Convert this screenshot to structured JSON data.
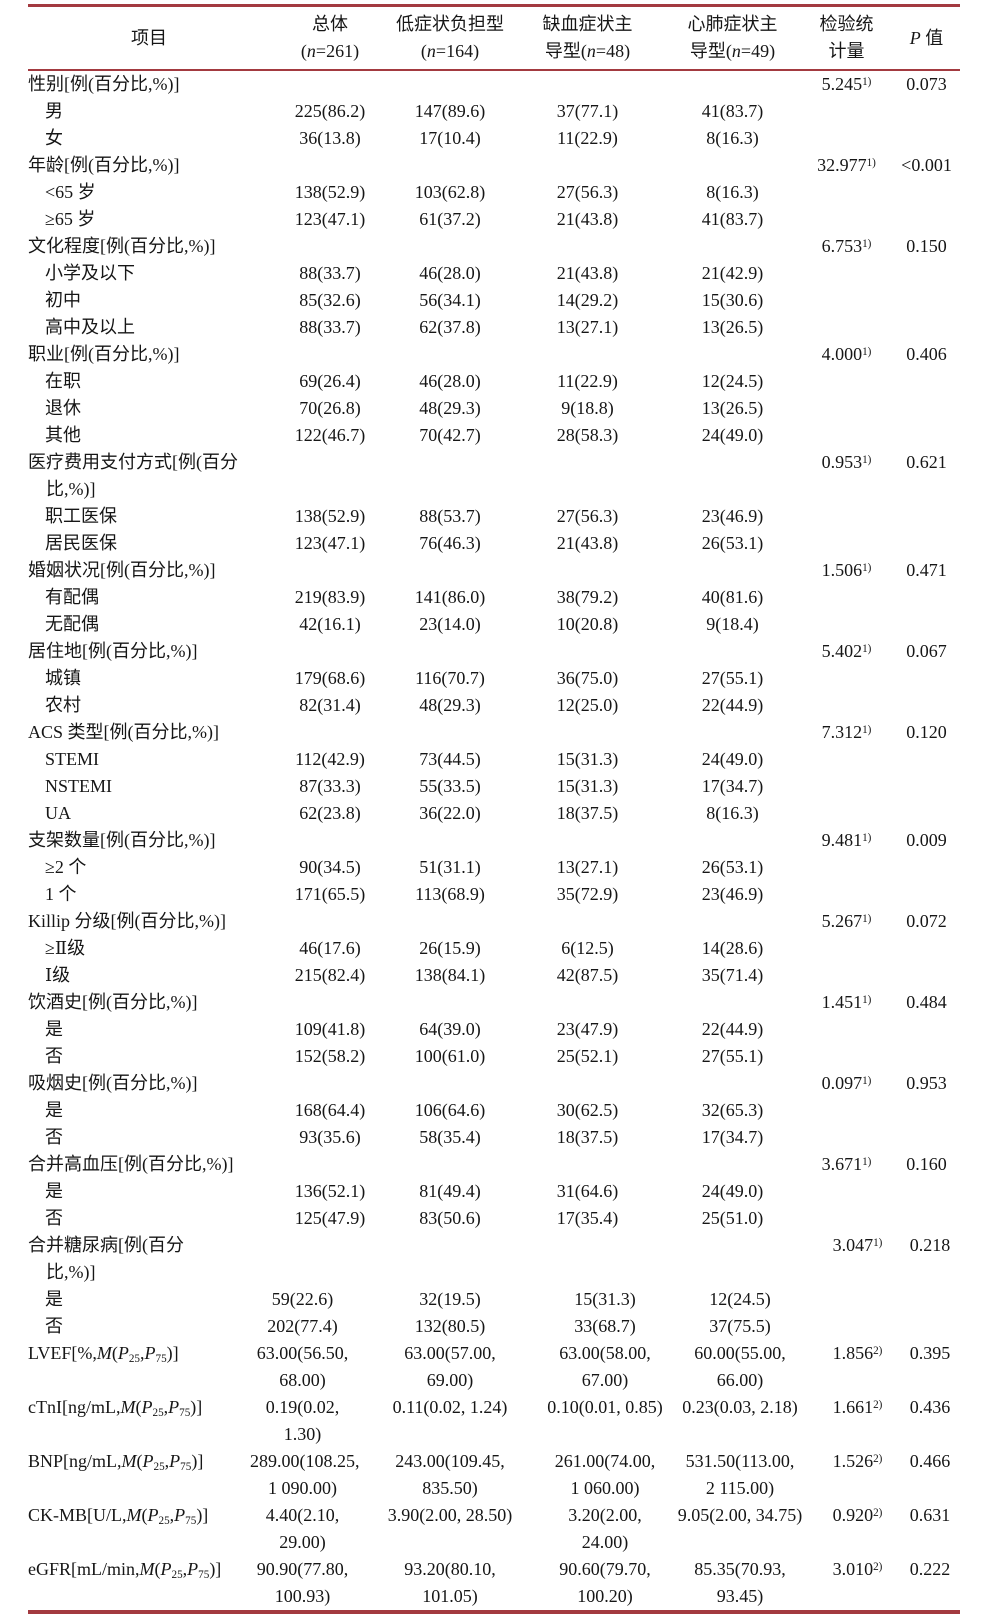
{
  "colors": {
    "rule": "#a33a40"
  },
  "table": {
    "header": {
      "cols": [
        {
          "l1": "项目",
          "l2": ""
        },
        {
          "l1": "总体",
          "l2": "(*n*=261)"
        },
        {
          "l1": "低症状负担型",
          "l2": "(*n*=164)"
        },
        {
          "l1": "缺血症状主",
          "l2": "导型(*n*=48)"
        },
        {
          "l1": "心肺症状主",
          "l2": "导型(*n*=49)"
        },
        {
          "l1": "检验统",
          "l2": "计量"
        },
        {
          "l1": "*P* 值",
          "l2": ""
        }
      ]
    },
    "sections": [
      {
        "rows": [
          {
            "type": "cat",
            "label": "性别[例(百分比,%)]",
            "v": [
              "",
              "",
              "",
              ""
            ],
            "stat": "5.245^1)^",
            "p": "0.073"
          },
          {
            "type": "sub",
            "label": "男",
            "v": [
              "225(86.2)",
              "147(89.6)",
              "37(77.1)",
              "41(83.7)"
            ],
            "stat": "",
            "p": ""
          },
          {
            "type": "sub",
            "label": "女",
            "v": [
              "36(13.8)",
              "17(10.4)",
              "11(22.9)",
              "8(16.3)"
            ],
            "stat": "",
            "p": ""
          },
          {
            "type": "cat",
            "label": "年龄[例(百分比,%)]",
            "v": [
              "",
              "",
              "",
              ""
            ],
            "stat": "32.977^1)^",
            "p": "<0.001"
          },
          {
            "type": "sub",
            "label": "<65 岁",
            "v": [
              "138(52.9)",
              "103(62.8)",
              "27(56.3)",
              "8(16.3)"
            ],
            "stat": "",
            "p": ""
          },
          {
            "type": "sub",
            "label": "≥65 岁",
            "v": [
              "123(47.1)",
              "61(37.2)",
              "21(43.8)",
              "41(83.7)"
            ],
            "stat": "",
            "p": ""
          },
          {
            "type": "cat",
            "label": "文化程度[例(百分比,%)]",
            "v": [
              "",
              "",
              "",
              ""
            ],
            "stat": "6.753^1)^",
            "p": "0.150"
          },
          {
            "type": "sub",
            "label": "小学及以下",
            "v": [
              "88(33.7)",
              "46(28.0)",
              "21(43.8)",
              "21(42.9)"
            ],
            "stat": "",
            "p": ""
          },
          {
            "type": "sub",
            "label": "初中",
            "v": [
              "85(32.6)",
              "56(34.1)",
              "14(29.2)",
              "15(30.6)"
            ],
            "stat": "",
            "p": ""
          },
          {
            "type": "sub",
            "label": "高中及以上",
            "v": [
              "88(33.7)",
              "62(37.8)",
              "13(27.1)",
              "13(26.5)"
            ],
            "stat": "",
            "p": ""
          },
          {
            "type": "cat",
            "label": "职业[例(百分比,%)]",
            "v": [
              "",
              "",
              "",
              ""
            ],
            "stat": "4.000^1)^",
            "p": "0.406"
          },
          {
            "type": "sub",
            "label": "在职",
            "v": [
              "69(26.4)",
              "46(28.0)",
              "11(22.9)",
              "12(24.5)"
            ],
            "stat": "",
            "p": ""
          },
          {
            "type": "sub",
            "label": "退休",
            "v": [
              "70(26.8)",
              "48(29.3)",
              "9(18.8)",
              "13(26.5)"
            ],
            "stat": "",
            "p": ""
          },
          {
            "type": "sub",
            "label": "其他",
            "v": [
              "122(46.7)",
              "70(42.7)",
              "28(58.3)",
              "24(49.0)"
            ],
            "stat": "",
            "p": ""
          },
          {
            "type": "cat",
            "label": "医疗费用支付方式[例(百分\n比,%)]",
            "v": [
              "",
              "",
              "",
              ""
            ],
            "stat": "0.953^1)^",
            "p": "0.621"
          },
          {
            "type": "sub",
            "label": "职工医保",
            "v": [
              "138(52.9)",
              "88(53.7)",
              "27(56.3)",
              "23(46.9)"
            ],
            "stat": "",
            "p": ""
          },
          {
            "type": "sub",
            "label": "居民医保",
            "v": [
              "123(47.1)",
              "76(46.3)",
              "21(43.8)",
              "26(53.1)"
            ],
            "stat": "",
            "p": ""
          },
          {
            "type": "cat",
            "label": "婚姻状况[例(百分比,%)]",
            "v": [
              "",
              "",
              "",
              ""
            ],
            "stat": "1.506^1)^",
            "p": "0.471"
          },
          {
            "type": "sub",
            "label": "有配偶",
            "v": [
              "219(83.9)",
              "141(86.0)",
              "38(79.2)",
              "40(81.6)"
            ],
            "stat": "",
            "p": ""
          },
          {
            "type": "sub",
            "label": "无配偶",
            "v": [
              "42(16.1)",
              "23(14.0)",
              "10(20.8)",
              "9(18.4)"
            ],
            "stat": "",
            "p": ""
          },
          {
            "type": "cat",
            "label": "居住地[例(百分比,%)]",
            "v": [
              "",
              "",
              "",
              ""
            ],
            "stat": "5.402^1)^",
            "p": "0.067"
          },
          {
            "type": "sub",
            "label": "城镇",
            "v": [
              "179(68.6)",
              "116(70.7)",
              "36(75.0)",
              "27(55.1)"
            ],
            "stat": "",
            "p": ""
          },
          {
            "type": "sub",
            "label": "农村",
            "v": [
              "82(31.4)",
              "48(29.3)",
              "12(25.0)",
              "22(44.9)"
            ],
            "stat": "",
            "p": ""
          },
          {
            "type": "cat",
            "label": "ACS 类型[例(百分比,%)]",
            "v": [
              "",
              "",
              "",
              ""
            ],
            "stat": "7.312^1)^",
            "p": "0.120"
          },
          {
            "type": "sub",
            "label": "STEMI",
            "v": [
              "112(42.9)",
              "73(44.5)",
              "15(31.3)",
              "24(49.0)"
            ],
            "stat": "",
            "p": ""
          },
          {
            "type": "sub",
            "label": "NSTEMI",
            "v": [
              "87(33.3)",
              "55(33.5)",
              "15(31.3)",
              "17(34.7)"
            ],
            "stat": "",
            "p": ""
          },
          {
            "type": "sub",
            "label": "UA",
            "v": [
              "62(23.8)",
              "36(22.0)",
              "18(37.5)",
              "8(16.3)"
            ],
            "stat": "",
            "p": ""
          },
          {
            "type": "cat",
            "label": "支架数量[例(百分比,%)]",
            "v": [
              "",
              "",
              "",
              ""
            ],
            "stat": "9.481^1)^",
            "p": "0.009"
          },
          {
            "type": "sub",
            "label": "≥2 个",
            "v": [
              "90(34.5)",
              "51(31.1)",
              "13(27.1)",
              "26(53.1)"
            ],
            "stat": "",
            "p": ""
          },
          {
            "type": "sub",
            "label": "1 个",
            "v": [
              "171(65.5)",
              "113(68.9)",
              "35(72.9)",
              "23(46.9)"
            ],
            "stat": "",
            "p": ""
          },
          {
            "type": "cat",
            "label": "Killip 分级[例(百分比,%)]",
            "v": [
              "",
              "",
              "",
              ""
            ],
            "stat": "5.267^1)^",
            "p": "0.072"
          },
          {
            "type": "sub",
            "label": "≥Ⅱ级",
            "v": [
              "46(17.6)",
              "26(15.9)",
              "6(12.5)",
              "14(28.6)"
            ],
            "stat": "",
            "p": ""
          },
          {
            "type": "sub",
            "label": "Ⅰ级",
            "v": [
              "215(82.4)",
              "138(84.1)",
              "42(87.5)",
              "35(71.4)"
            ],
            "stat": "",
            "p": ""
          },
          {
            "type": "cat",
            "label": "饮酒史[例(百分比,%)]",
            "v": [
              "",
              "",
              "",
              ""
            ],
            "stat": "1.451^1)^",
            "p": "0.484"
          },
          {
            "type": "sub",
            "label": "是",
            "v": [
              "109(41.8)",
              "64(39.0)",
              "23(47.9)",
              "22(44.9)"
            ],
            "stat": "",
            "p": ""
          },
          {
            "type": "sub",
            "label": "否",
            "v": [
              "152(58.2)",
              "100(61.0)",
              "25(52.1)",
              "27(55.1)"
            ],
            "stat": "",
            "p": ""
          },
          {
            "type": "cat",
            "label": "吸烟史[例(百分比,%)]",
            "v": [
              "",
              "",
              "",
              ""
            ],
            "stat": "0.097^1)^",
            "p": "0.953"
          },
          {
            "type": "sub",
            "label": "是",
            "v": [
              "168(64.4)",
              "106(64.6)",
              "30(62.5)",
              "32(65.3)"
            ],
            "stat": "",
            "p": ""
          },
          {
            "type": "sub",
            "label": "否",
            "v": [
              "93(35.6)",
              "58(35.4)",
              "18(37.5)",
              "17(34.7)"
            ],
            "stat": "",
            "p": ""
          },
          {
            "type": "cat",
            "label": "合并高血压[例(百分比,%)]",
            "v": [
              "",
              "",
              "",
              ""
            ],
            "stat": "3.671^1)^",
            "p": "0.160"
          },
          {
            "type": "sub",
            "label": "是",
            "v": [
              "136(52.1)",
              "81(49.4)",
              "31(64.6)",
              "24(49.0)"
            ],
            "stat": "",
            "p": ""
          },
          {
            "type": "sub",
            "label": "否",
            "v": [
              "125(47.9)",
              "83(50.6)",
              "17(35.4)",
              "25(51.0)"
            ],
            "stat": "",
            "p": ""
          }
        ]
      },
      {
        "rows": [
          {
            "type": "cat",
            "label": "合并糖尿病[例(百分\n比,%)]",
            "v": [
              "",
              "",
              "",
              ""
            ],
            "stat": "3.047^1)^",
            "p": "0.218"
          },
          {
            "type": "sub",
            "label": "是",
            "v": [
              "59(22.6)",
              "32(19.5)",
              "15(31.3)",
              "12(24.5)"
            ],
            "stat": "",
            "p": ""
          },
          {
            "type": "sub",
            "label": "否",
            "v": [
              "202(77.4)",
              "132(80.5)",
              "33(68.7)",
              "37(75.5)"
            ],
            "stat": "",
            "p": ""
          },
          {
            "type": "lab",
            "label": "LVEF[%,*M*(*P*~25~,*P*~75~)]",
            "v": [
              "63.00(56.50,\n68.00)",
              "63.00(57.00,\n69.00)",
              "63.00(58.00,\n67.00)",
              "60.00(55.00,\n66.00)"
            ],
            "stat": "1.856^2)^",
            "p": "0.395"
          },
          {
            "type": "lab",
            "label": "cTnI[ng/mL,*M*(*P*~25~,*P*~75~)]",
            "v": [
              "0.19(0.02, 1.30)",
              "0.11(0.02, 1.24)",
              "0.10(0.01, 0.85)",
              "0.23(0.03, 2.18)"
            ],
            "stat": "1.661^2)^",
            "p": "0.436"
          },
          {
            "type": "lab",
            "label": "BNP[ng/mL,*M*(*P*~25~,*P*~75~)]",
            "v": [
              "289.00(108.25,\n1 090.00)",
              "243.00(109.45,\n835.50)",
              "261.00(74.00,\n1 060.00)",
              "531.50(113.00,\n2 115.00)"
            ],
            "stat": "1.526^2)^",
            "p": "0.466"
          },
          {
            "type": "lab",
            "label": "CK-MB[U/L,*M*(*P*~25~,*P*~75~)]",
            "v": [
              "4.40(2.10, 29.00)",
              "3.90(2.00, 28.50)",
              "3.20(2.00, 24.00)",
              "9.05(2.00, 34.75)"
            ],
            "stat": "0.920^2)^",
            "p": "0.631"
          },
          {
            "type": "lab",
            "label": "eGFR[mL/min,*M*(*P*~25~,*P*~75~)]",
            "v": [
              "90.90(77.80,\n100.93)",
              "93.20(80.10,\n101.05)",
              "90.60(79.70,\n100.20)",
              "85.35(70.93,\n93.45)"
            ],
            "stat": "3.010^2)^",
            "p": "0.222"
          }
        ]
      }
    ]
  }
}
